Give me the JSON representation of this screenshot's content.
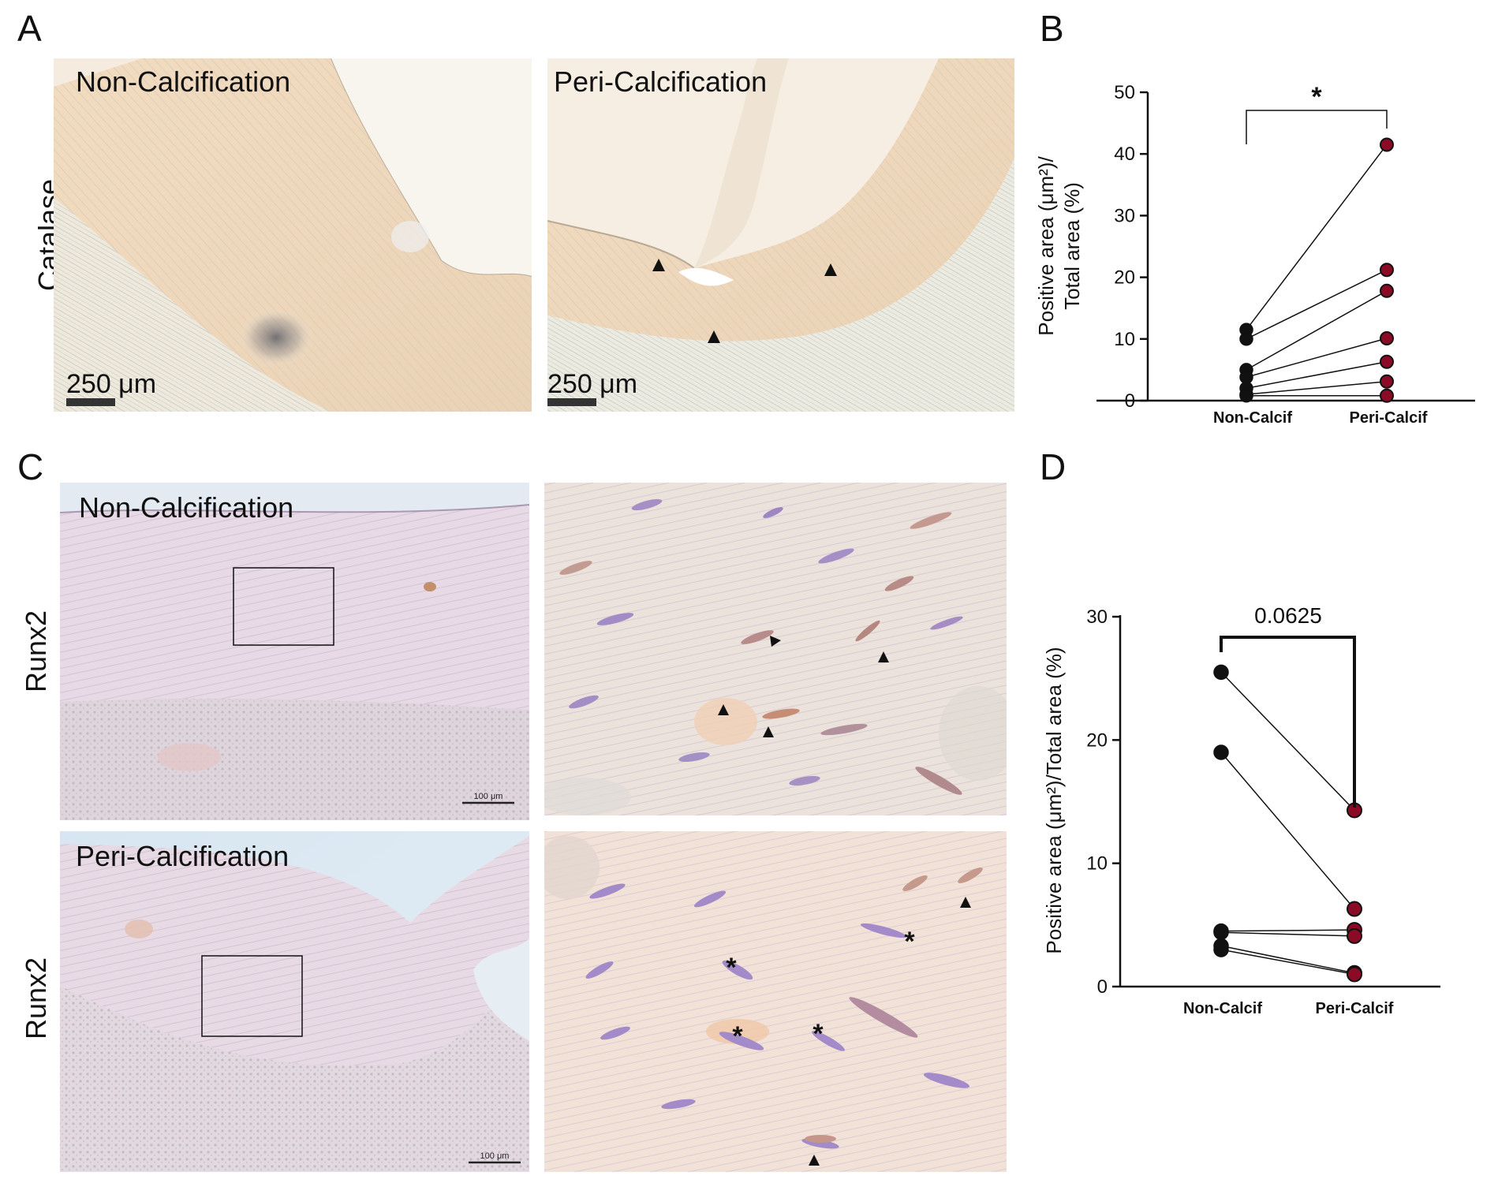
{
  "panel_labels": {
    "a": "A",
    "b": "B",
    "c": "C",
    "d": "D"
  },
  "panel_a": {
    "row_label": "Catalase",
    "left_title": "Non-Calcification",
    "right_title": "Peri-Calcification",
    "scalebar_left": "250 μm",
    "scalebar_right": "250 μm"
  },
  "panel_c": {
    "row1_label": "Runx2",
    "row2_label": "Runx2",
    "top_title": "Non-Calcification",
    "bottom_title": "Peri-Calcification",
    "scalebar_top": "100 μm",
    "scalebar_bottom": "100 μm"
  },
  "annotations": {
    "asterisk": "*"
  },
  "colors": {
    "non_calcif_marker": "#111111",
    "peri_calcif_marker": "#8b0a25",
    "tissue_catalase": "#f2e6d4",
    "tissue_runx2": "#e8dce6"
  },
  "chart_data": [
    {
      "panel": "B",
      "type": "scatter",
      "style": "paired before-after",
      "categories": [
        "Non-Calcif",
        "Peri-Calcif"
      ],
      "ylabel_line1": "Positive area (μm²)/",
      "ylabel_line2": "Total area (%)",
      "ylim": [
        0,
        50
      ],
      "yticks": [
        "0",
        "10",
        "20",
        "30",
        "40",
        "50"
      ],
      "significance": "*",
      "pairs": [
        [
          11.5,
          41.5
        ],
        [
          10.0,
          21.2
        ],
        [
          5.0,
          17.8
        ],
        [
          3.8,
          10.1
        ],
        [
          2.0,
          6.3
        ],
        [
          1.0,
          3.1
        ],
        [
          0.8,
          0.8
        ]
      ]
    },
    {
      "panel": "D",
      "type": "scatter",
      "style": "paired before-after",
      "categories": [
        "Non-Calcif",
        "Peri-Calcif"
      ],
      "ylabel": "Positive area (μm²)/Total area (%)",
      "ylim": [
        0,
        30
      ],
      "yticks": [
        "0",
        "10",
        "20",
        "30"
      ],
      "significance": "0.0625",
      "pairs": [
        [
          25.5,
          14.3
        ],
        [
          19.0,
          6.3
        ],
        [
          4.5,
          4.6
        ],
        [
          4.4,
          4.1
        ],
        [
          3.3,
          1.1
        ],
        [
          3.0,
          1.0
        ]
      ]
    }
  ]
}
